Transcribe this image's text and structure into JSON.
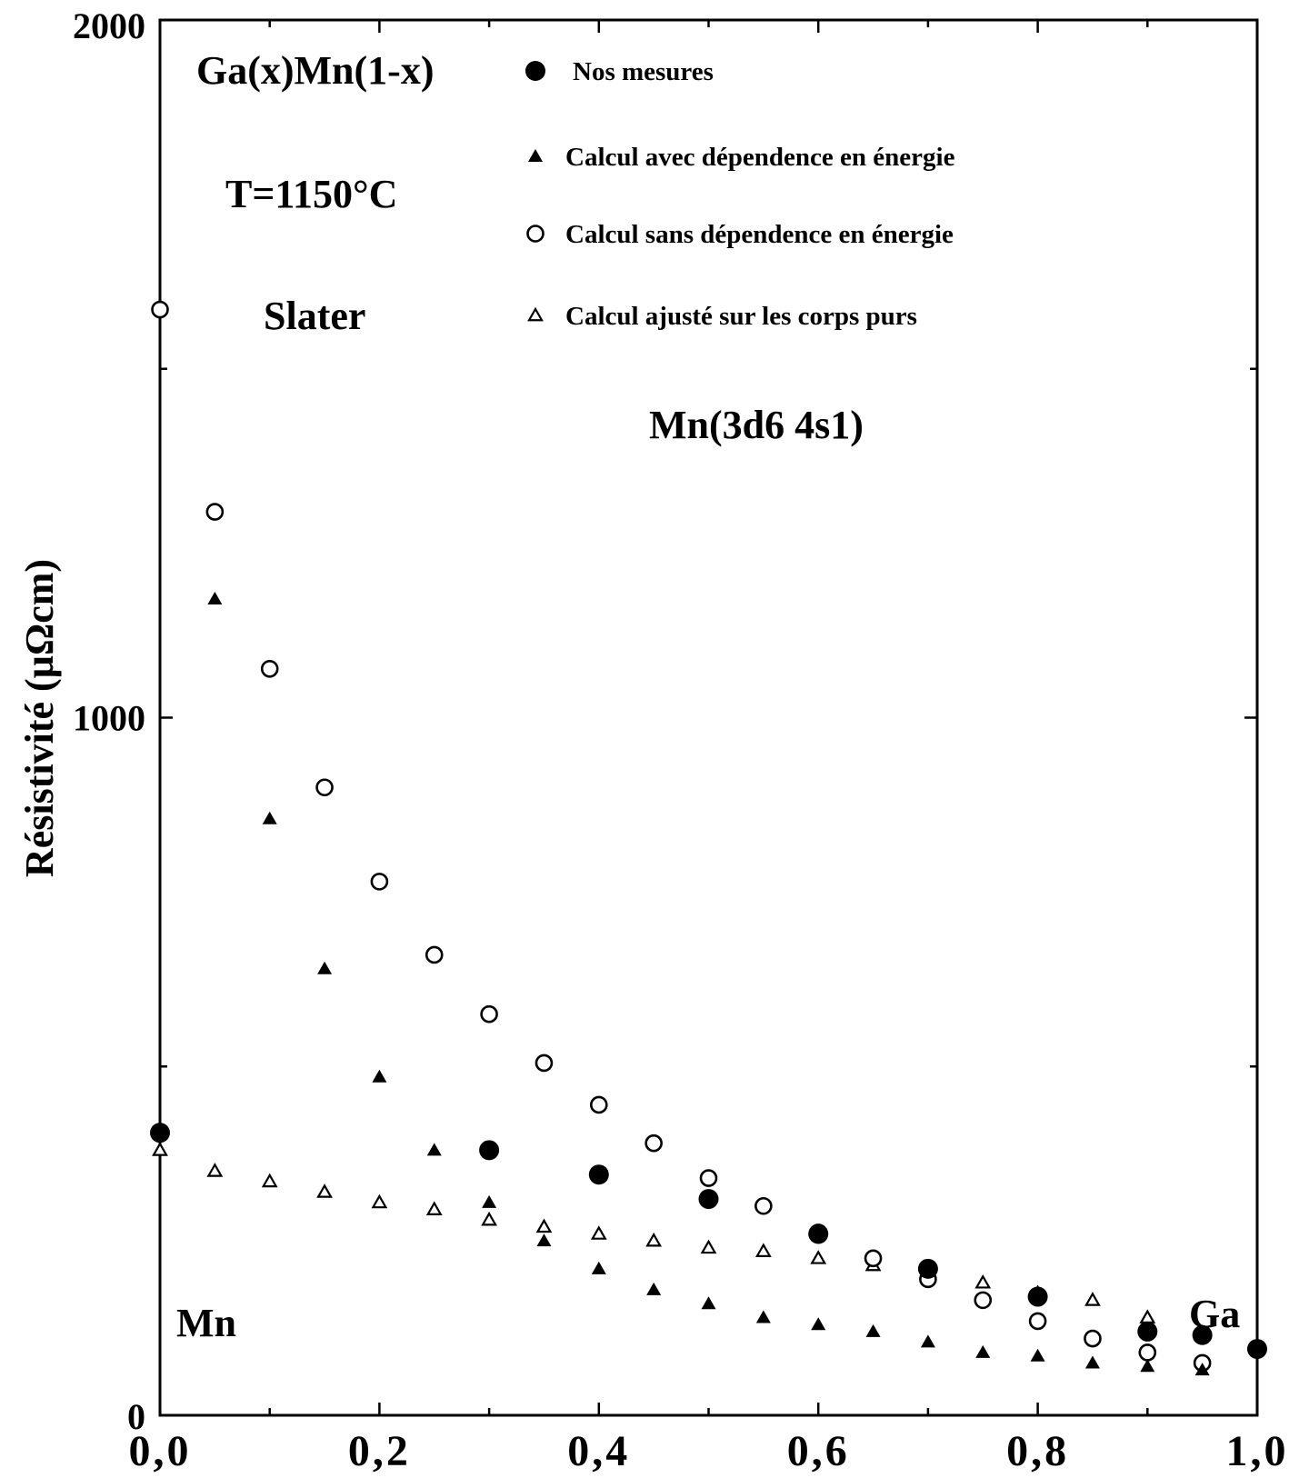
{
  "chart_data": {
    "type": "scatter",
    "title": "",
    "xlabel": "",
    "ylabel": "Résistivité  (µΩcm)",
    "xlim": [
      0,
      1
    ],
    "ylim": [
      0,
      2000
    ],
    "x_ticks": [
      "0,0",
      "0,2",
      "0,4",
      "0,6",
      "0,8",
      "1,0"
    ],
    "y_ticks": [
      "0",
      "1000",
      "2000"
    ],
    "annotations": {
      "system": "Ga(x)Mn(1-x)",
      "temperature": "T=1150°C",
      "method": "Slater",
      "configuration": "Mn(3d6  4s1)",
      "left_end": "Mn",
      "right_end": "Ga"
    },
    "legend_placement": "top-right",
    "series": [
      {
        "name": "Nos mesures",
        "marker": "filled-circle",
        "x": [
          0.0,
          0.3,
          0.4,
          0.5,
          0.6,
          0.7,
          0.8,
          0.9,
          0.95,
          1.0
        ],
        "y": [
          405,
          380,
          345,
          310,
          260,
          210,
          170,
          120,
          115,
          95
        ]
      },
      {
        "name": "Calcul avec dépendence en énergie",
        "marker": "filled-triangle",
        "x": [
          0.05,
          0.1,
          0.15,
          0.2,
          0.25,
          0.3,
          0.35,
          0.4,
          0.45,
          0.5,
          0.55,
          0.6,
          0.65,
          0.7,
          0.75,
          0.8,
          0.85,
          0.9,
          0.95
        ],
        "y": [
          1170,
          855,
          640,
          485,
          380,
          305,
          250,
          210,
          180,
          160,
          140,
          130,
          120,
          105,
          90,
          85,
          75,
          70,
          65
        ]
      },
      {
        "name": "Calcul sans dépendence en énergie",
        "marker": "open-circle",
        "x": [
          0.0,
          0.05,
          0.1,
          0.15,
          0.2,
          0.25,
          0.3,
          0.35,
          0.4,
          0.45,
          0.5,
          0.55,
          0.6,
          0.65,
          0.7,
          0.75,
          0.8,
          0.85,
          0.9,
          0.95
        ],
        "y": [
          1585,
          1295,
          1070,
          900,
          765,
          660,
          575,
          505,
          445,
          390,
          340,
          300,
          262,
          225,
          195,
          165,
          135,
          110,
          90,
          75
        ]
      },
      {
        "name": "Calcul  ajusté sur les corps purs",
        "marker": "open-triangle",
        "x": [
          0.0,
          0.05,
          0.1,
          0.15,
          0.2,
          0.25,
          0.3,
          0.35,
          0.4,
          0.45,
          0.5,
          0.55,
          0.6,
          0.65,
          0.7,
          0.75,
          0.8,
          0.85,
          0.9,
          0.95
        ],
        "y": [
          380,
          350,
          335,
          320,
          305,
          295,
          280,
          270,
          260,
          250,
          240,
          235,
          225,
          215,
          205,
          190,
          175,
          165,
          140,
          118
        ]
      }
    ]
  }
}
